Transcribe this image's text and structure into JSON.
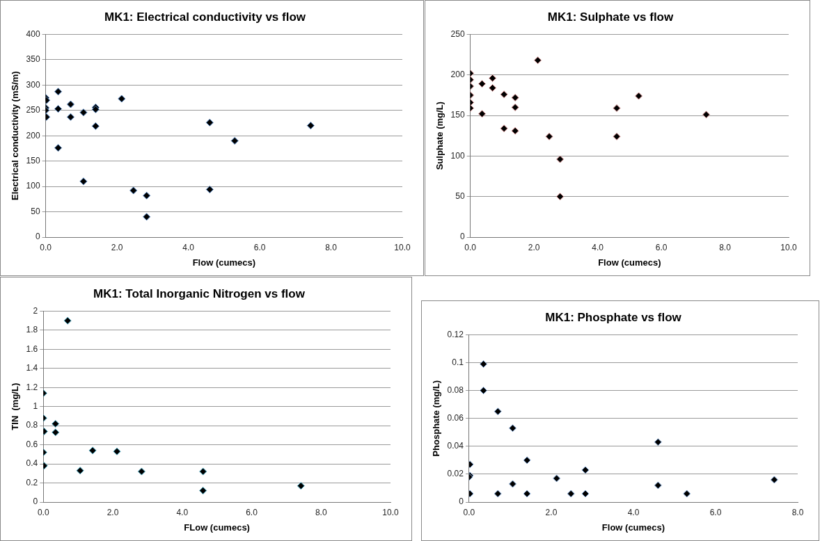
{
  "chart_data": [
    {
      "type": "scatter",
      "title": "MK1: Electrical conductivity vs flow",
      "xlabel": "Flow (cumecs)",
      "ylabel": "Electrical conductivity (mS/m)",
      "x": [
        0,
        0.02,
        0,
        0,
        0.02,
        0.35,
        0.35,
        0.35,
        0.7,
        0.7,
        1.06,
        1.06,
        1.4,
        1.4,
        1.4,
        2.13,
        2.46,
        2.83,
        2.83,
        4.6,
        4.6,
        5.3,
        7.43
      ],
      "series": [
        {
          "color": "#000000",
          "values": [
            275,
            270,
            255,
            250,
            237,
            287,
            253,
            176,
            262,
            237,
            246,
            110,
            256,
            252,
            219,
            273,
            92,
            82,
            40,
            226,
            94,
            190,
            220
          ]
        }
      ],
      "xlim": [
        0,
        10
      ],
      "xticks": [
        {
          "value": 0,
          "label": "0.0"
        },
        {
          "value": 2,
          "label": "2.0"
        },
        {
          "value": 4,
          "label": "4.0"
        },
        {
          "value": 6,
          "label": "6.0"
        },
        {
          "value": 8,
          "label": "8.0"
        },
        {
          "value": 10,
          "label": "10.0"
        }
      ],
      "ylim": [
        0,
        400
      ],
      "yticks": [
        0,
        50,
        100,
        150,
        200,
        250,
        300,
        350,
        400
      ],
      "grid": "y",
      "legend": false,
      "marker": "diamond"
    },
    {
      "type": "scatter",
      "title": "MK1: Sulphate vs flow",
      "xlabel": "Flow (cumecs)",
      "ylabel": "Sulphate (mg/L)",
      "x": [
        0,
        0,
        0,
        0,
        0,
        0,
        0.37,
        0.37,
        0.7,
        0.7,
        1.06,
        1.06,
        1.41,
        1.41,
        1.41,
        2.12,
        2.48,
        2.82,
        2.82,
        4.6,
        4.6,
        5.29,
        7.41
      ],
      "series": [
        {
          "color": "#000000",
          "values": [
            202,
            194,
            186,
            175,
            166,
            159,
            189,
            152,
            196,
            184,
            176,
            134,
            172,
            160,
            131,
            218,
            124,
            96,
            50,
            159,
            124,
            174,
            151
          ]
        }
      ],
      "xlim": [
        0,
        10
      ],
      "xticks": [
        {
          "value": 0,
          "label": "0.0"
        },
        {
          "value": 2,
          "label": "2.0"
        },
        {
          "value": 4,
          "label": "4.0"
        },
        {
          "value": 6,
          "label": "6.0"
        },
        {
          "value": 8,
          "label": "8.0"
        },
        {
          "value": 10,
          "label": "10.0"
        }
      ],
      "ylim": [
        0,
        250
      ],
      "yticks": [
        0,
        50,
        100,
        150,
        200,
        250
      ],
      "grid": "y",
      "legend": false,
      "marker": "diamond"
    },
    {
      "type": "scatter",
      "title": "MK1: Total Inorganic Nitrogen vs flow",
      "xlabel": "FLow (cumecs)",
      "ylabel": "TIN  (mg/L)",
      "x": [
        0.7,
        0,
        0,
        0.02,
        0,
        0.02,
        0.35,
        0.35,
        1.06,
        1.42,
        2.12,
        2.83,
        4.6,
        4.6,
        7.42
      ],
      "series": [
        {
          "color": "#000000",
          "values": [
            1.9,
            1.14,
            0.88,
            0.74,
            0.52,
            0.38,
            0.82,
            0.73,
            0.33,
            0.54,
            0.53,
            0.32,
            0.32,
            0.12,
            0.17
          ]
        }
      ],
      "xlim": [
        0,
        10
      ],
      "xticks": [
        {
          "value": 0,
          "label": "0.0"
        },
        {
          "value": 2,
          "label": "2.0"
        },
        {
          "value": 4,
          "label": "4.0"
        },
        {
          "value": 6,
          "label": "6.0"
        },
        {
          "value": 8,
          "label": "8.0"
        },
        {
          "value": 10,
          "label": "10.0"
        }
      ],
      "ylim": [
        0,
        2
      ],
      "yticks": [
        0,
        0.2,
        0.4,
        0.6,
        0.8,
        1,
        1.2,
        1.4,
        1.6,
        1.8,
        2
      ],
      "grid": "y",
      "legend": false,
      "marker": "diamond"
    },
    {
      "type": "scatter",
      "title": "MK1: Phosphate vs flow",
      "xlabel": "Flow (cumecs)",
      "ylabel": "Phosphate (mg/L)",
      "x": [
        0.02,
        0.02,
        0,
        0.02,
        0.35,
        0.35,
        0.7,
        0.7,
        1.06,
        1.06,
        1.41,
        1.41,
        2.13,
        2.48,
        2.83,
        2.83,
        4.6,
        4.6,
        5.3,
        7.43
      ],
      "series": [
        {
          "color": "#000000",
          "values": [
            0.027,
            0.019,
            0.018,
            0.006,
            0.099,
            0.08,
            0.065,
            0.006,
            0.053,
            0.013,
            0.03,
            0.006,
            0.017,
            0.006,
            0.023,
            0.006,
            0.043,
            0.012,
            0.006,
            0.016
          ]
        }
      ],
      "xlim": [
        0,
        8
      ],
      "xticks": [
        {
          "value": 0,
          "label": "0.0"
        },
        {
          "value": 2,
          "label": "2.0"
        },
        {
          "value": 4,
          "label": "4.0"
        },
        {
          "value": 6,
          "label": "6.0"
        },
        {
          "value": 8,
          "label": "8.0"
        }
      ],
      "ylim": [
        0,
        0.12
      ],
      "yticks": [
        0,
        0.02,
        0.04,
        0.06,
        0.08,
        0.1,
        0.12
      ],
      "grid": "y",
      "legend": false,
      "marker": "diamond"
    }
  ]
}
